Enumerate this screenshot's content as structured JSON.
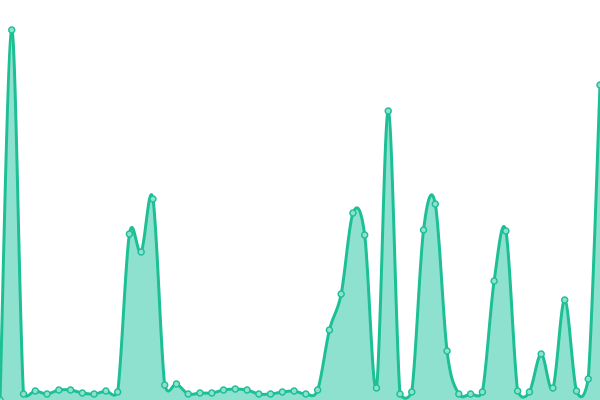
{
  "chart_data": {
    "type": "area",
    "title": "",
    "xlabel": "",
    "ylabel": "",
    "x": [
      0,
      1,
      2,
      3,
      4,
      5,
      6,
      7,
      8,
      9,
      10,
      11,
      12,
      13,
      14,
      15,
      16,
      17,
      18,
      19,
      20,
      21,
      22,
      23,
      24,
      25,
      26,
      27,
      28,
      29,
      30,
      31,
      32,
      33,
      34,
      35,
      36,
      37,
      38,
      39,
      40,
      41,
      42,
      43,
      44,
      45,
      46,
      47,
      48,
      49,
      50,
      51
    ],
    "values": [
      0,
      370,
      6,
      9,
      6,
      10,
      10,
      7,
      6,
      9,
      8,
      166,
      148,
      201,
      15,
      16,
      6,
      7,
      7,
      10,
      11,
      10,
      6,
      6,
      8,
      9,
      6,
      10,
      70,
      106,
      187,
      165,
      12,
      289,
      6,
      8,
      170,
      196,
      49,
      6,
      6,
      8,
      119,
      169,
      9,
      8,
      46,
      12,
      100,
      9,
      21,
      315
    ],
    "xlim": [
      0,
      51
    ],
    "ylim": [
      0,
      400
    ],
    "grid": false,
    "axes_visible": false,
    "line_color": "#1dbf95",
    "fill_color": "#8ee1cf",
    "marker_fill": "#8ee1cf"
  }
}
